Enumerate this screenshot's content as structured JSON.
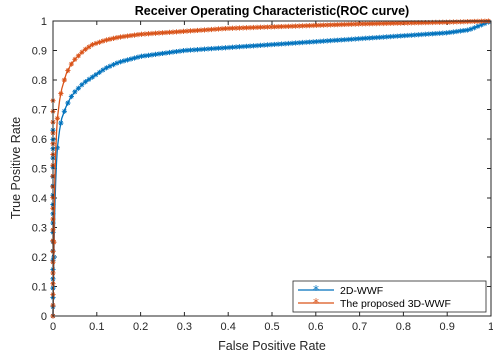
{
  "chart_data": {
    "type": "line",
    "title": "Receiver Operating Characteristic(ROC curve)",
    "xlabel": "False Positive Rate",
    "ylabel": "True Positive Rate",
    "xlim": [
      0,
      1
    ],
    "ylim": [
      0,
      1
    ],
    "xticks": [
      "0",
      "0.1",
      "0.2",
      "0.3",
      "0.4",
      "0.5",
      "0.6",
      "0.7",
      "0.8",
      "0.9",
      "1"
    ],
    "yticks": [
      "0",
      "0.1",
      "0.2",
      "0.3",
      "0.4",
      "0.5",
      "0.6",
      "0.7",
      "0.8",
      "0.9",
      "1"
    ],
    "grid": false,
    "legend_position": "bottom-right",
    "marker": "*",
    "series": [
      {
        "name": "2D-WWF",
        "color": "#0072BD",
        "x": [
          0,
          0.002,
          0.004,
          0.006,
          0.008,
          0.01,
          0.015,
          0.02,
          0.03,
          0.04,
          0.05,
          0.07,
          0.09,
          0.1,
          0.12,
          0.15,
          0.2,
          0.25,
          0.3,
          0.4,
          0.5,
          0.6,
          0.7,
          0.8,
          0.9,
          0.95,
          1.0
        ],
        "y": [
          0,
          0.2,
          0.35,
          0.45,
          0.52,
          0.57,
          0.63,
          0.67,
          0.71,
          0.74,
          0.76,
          0.79,
          0.81,
          0.82,
          0.84,
          0.86,
          0.88,
          0.89,
          0.9,
          0.91,
          0.92,
          0.93,
          0.94,
          0.95,
          0.96,
          0.97,
          1.0
        ]
      },
      {
        "name": "The proposed 3D-WWF",
        "color": "#D95319",
        "x": [
          0,
          0.002,
          0.004,
          0.006,
          0.008,
          0.01,
          0.015,
          0.02,
          0.03,
          0.04,
          0.05,
          0.07,
          0.09,
          0.1,
          0.12,
          0.15,
          0.2,
          0.25,
          0.3,
          0.4,
          0.5,
          0.6,
          0.7,
          0.8,
          0.9,
          0.95,
          1.0
        ],
        "y": [
          0,
          0.25,
          0.45,
          0.55,
          0.62,
          0.67,
          0.73,
          0.77,
          0.82,
          0.85,
          0.87,
          0.9,
          0.92,
          0.925,
          0.935,
          0.945,
          0.955,
          0.96,
          0.965,
          0.975,
          0.98,
          0.985,
          0.99,
          0.993,
          0.996,
          0.998,
          1.0
        ]
      }
    ]
  }
}
